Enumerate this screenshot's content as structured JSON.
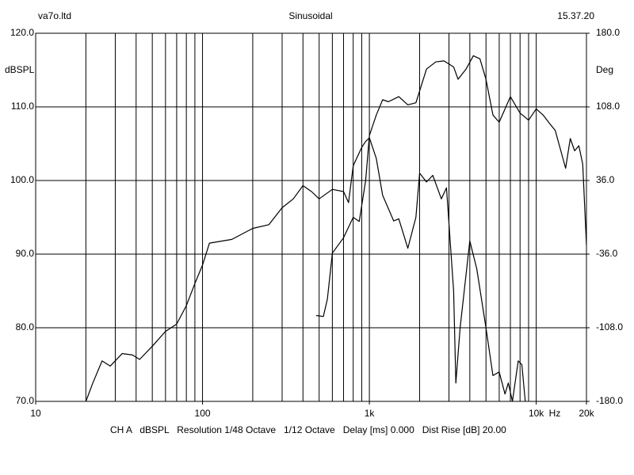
{
  "chart_data": {
    "type": "line",
    "title": "Sinusoidal",
    "header_left": "va7o.ltd",
    "header_right": "15.37.20",
    "footer": "CH A   dBSPL   Resolution 1/48 Octave   1/12 Octave   Delay [ms] 0.000   Dist Rise [dB] 20.00",
    "y_label": "dBSPL",
    "y2_label": "Deg",
    "x_label": "Hz",
    "log_x": true,
    "grid": true,
    "xlim": [
      10,
      20000
    ],
    "xticks": [
      10,
      100,
      {
        "value": 1000,
        "label": "1k"
      },
      {
        "value": 10000,
        "label": "10k"
      },
      {
        "value": 20000,
        "label": "20k"
      }
    ],
    "xgrid": [
      20,
      30,
      40,
      50,
      60,
      70,
      80,
      90,
      100,
      200,
      300,
      400,
      500,
      600,
      700,
      800,
      900,
      1000,
      2000,
      3000,
      4000,
      5000,
      6000,
      7000,
      8000,
      9000,
      10000
    ],
    "ylim": [
      70,
      120
    ],
    "yticks": [
      {
        "value": 70,
        "label": "70.0"
      },
      {
        "value": 80,
        "label": "80.0"
      },
      {
        "value": 90,
        "label": "90.0"
      },
      {
        "value": 100,
        "label": "100.0"
      },
      {
        "value": 110,
        "label": "110.0"
      },
      {
        "value": 120,
        "label": "120.0"
      }
    ],
    "y2lim": [
      -180,
      180
    ],
    "y2ticks": [
      {
        "value": -180,
        "label": "-180.0"
      },
      {
        "value": -108,
        "label": "-108.0"
      },
      {
        "value": -36,
        "label": "-36.0"
      },
      {
        "value": 36,
        "label": "36.0"
      },
      {
        "value": 108,
        "label": "108.0"
      },
      {
        "value": 180,
        "label": "180.0"
      }
    ],
    "series": [
      {
        "name": "dBSPL",
        "color": "#000000",
        "x": [
          20,
          22,
          25,
          28,
          33,
          38,
          42,
          50,
          60,
          70,
          80,
          90,
          100,
          110,
          150,
          200,
          250,
          300,
          350,
          400,
          450,
          500,
          600,
          700,
          750,
          800,
          900,
          950,
          1000,
          1100,
          1200,
          1400,
          1500,
          1700,
          1900,
          2000,
          2200,
          2400,
          2700,
          2900,
          3200,
          3300,
          3500,
          4000,
          4400,
          5000,
          5500,
          6000,
          6500,
          6800,
          7200,
          7800,
          8200,
          8600
        ],
        "values": [
          70,
          72.5,
          75.5,
          74.8,
          76.5,
          76.3,
          75.7,
          77.5,
          79.5,
          80.5,
          83,
          86,
          88.5,
          91.5,
          92,
          93.5,
          94,
          96.3,
          97.5,
          99.3,
          98.5,
          97.5,
          98.8,
          98.5,
          97,
          102,
          104.5,
          105.3,
          105.8,
          103,
          98,
          94.5,
          94.8,
          90.8,
          95,
          101,
          99.8,
          100.7,
          97.5,
          99,
          85,
          72.5,
          80,
          91.8,
          88,
          80,
          73.5,
          74,
          71,
          72.5,
          70,
          75.5,
          75,
          70
        ]
      },
      {
        "name": "Deg",
        "color": "#000000",
        "axis": "y2",
        "x": [
          480,
          530,
          560,
          600,
          700,
          800,
          870,
          950,
          1000,
          1100,
          1200,
          1300,
          1500,
          1700,
          1900,
          2200,
          2500,
          2800,
          3200,
          3400,
          3800,
          4200,
          4600,
          5000,
          5500,
          6000,
          7000,
          8000,
          9000,
          10000,
          11000,
          12000,
          13000,
          15000,
          16000,
          17000,
          18000,
          19000,
          20000
        ],
        "values": [
          -96,
          -97,
          -80,
          -35,
          -20,
          0,
          -4,
          36,
          80,
          100,
          115,
          113,
          118,
          110,
          112,
          145,
          152,
          153,
          147,
          135,
          145,
          158,
          155,
          135,
          100,
          93,
          118,
          102,
          95,
          106,
          100,
          92,
          85,
          48,
          77,
          65,
          70,
          52,
          -27
        ]
      }
    ]
  }
}
